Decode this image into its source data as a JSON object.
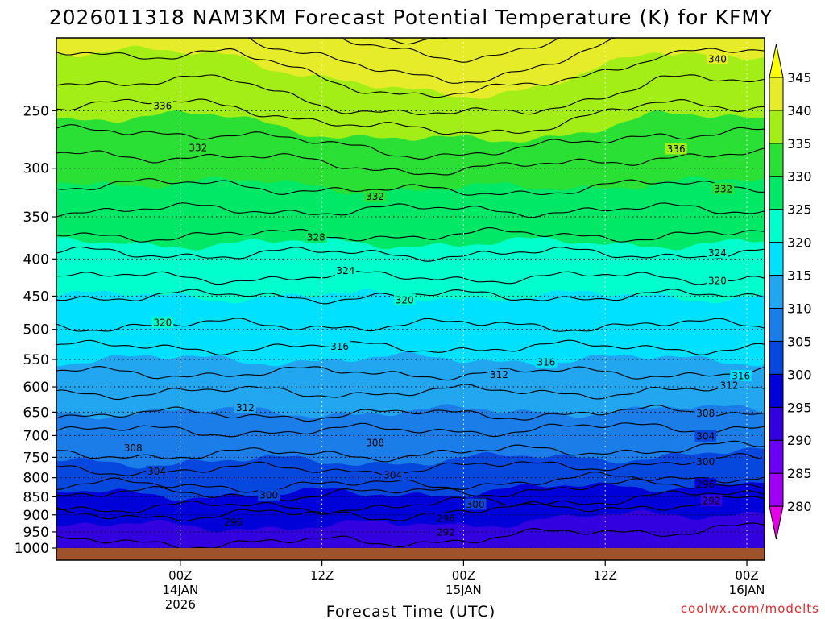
{
  "chart_data": {
    "type": "heatmap",
    "title": "2026011318 NAM3KM Forecast Potential Temperature (K) for KFMY",
    "xlabel": "Forecast Time (UTC)",
    "ylabel": "",
    "credit": "coolwx.com/modelts",
    "y_axis_log_pressure": true,
    "ylim": [
      1000,
      200
    ],
    "yticks": [
      1000,
      950,
      900,
      850,
      800,
      750,
      700,
      650,
      600,
      550,
      500,
      450,
      400,
      350,
      300,
      250
    ],
    "x_hours_range": [
      -4.5,
      55.5
    ],
    "x_ticks": [
      {
        "hour": 6,
        "lines": [
          "00Z",
          "14JAN",
          "2026"
        ]
      },
      {
        "hour": 18,
        "lines": [
          "12Z"
        ]
      },
      {
        "hour": 30,
        "lines": [
          "00Z",
          "15JAN"
        ]
      },
      {
        "hour": 42,
        "lines": [
          "12Z"
        ]
      },
      {
        "hour": 54,
        "lines": [
          "00Z",
          "16JAN"
        ]
      }
    ],
    "grid": true,
    "colorbar": {
      "levels": [
        280,
        285,
        290,
        295,
        300,
        305,
        310,
        315,
        320,
        325,
        330,
        335,
        340,
        345
      ],
      "colors": [
        "#e500e5",
        "#9d00f5",
        "#6a00f5",
        "#3300e0",
        "#0000d8",
        "#0648dd",
        "#1a7de8",
        "#22a6f0",
        "#00e0ff",
        "#00ffcc",
        "#00e865",
        "#2be035",
        "#a3ee17",
        "#e6ec2a",
        "#ffff00"
      ],
      "labels": [
        "280",
        "285",
        "290",
        "295",
        "300",
        "305",
        "310",
        "315",
        "320",
        "325",
        "330",
        "335",
        "340",
        "345"
      ]
    },
    "contour_interval": 4,
    "theta_profile_hpa_k": [
      [
        1000,
        293.5
      ],
      [
        950,
        294.5
      ],
      [
        900,
        296
      ],
      [
        850,
        299.5
      ],
      [
        800,
        303
      ],
      [
        750,
        305.5
      ],
      [
        700,
        307.5
      ],
      [
        650,
        310
      ],
      [
        600,
        312.5
      ],
      [
        550,
        315
      ],
      [
        500,
        317.5
      ],
      [
        450,
        320
      ],
      [
        400,
        323.5
      ],
      [
        350,
        327.5
      ],
      [
        300,
        331
      ],
      [
        250,
        335.5
      ],
      [
        200,
        341
      ]
    ],
    "contour_labels": [
      {
        "text": "340",
        "hour": 51.5,
        "hpa": 212
      },
      {
        "text": "336",
        "hour": 4.5,
        "hpa": 246
      },
      {
        "text": "336",
        "hour": 48,
        "hpa": 282
      },
      {
        "text": "332",
        "hour": 7.5,
        "hpa": 281
      },
      {
        "text": "332",
        "hour": 52,
        "hpa": 320
      },
      {
        "text": "332",
        "hour": 22.5,
        "hpa": 328
      },
      {
        "text": "328",
        "hour": 17.5,
        "hpa": 373
      },
      {
        "text": "324",
        "hour": 20,
        "hpa": 415
      },
      {
        "text": "324",
        "hour": 51.5,
        "hpa": 392
      },
      {
        "text": "320",
        "hour": 25,
        "hpa": 455
      },
      {
        "text": "320",
        "hour": 51.5,
        "hpa": 428
      },
      {
        "text": "320",
        "hour": 4.5,
        "hpa": 489
      },
      {
        "text": "316",
        "hour": 19.5,
        "hpa": 527
      },
      {
        "text": "316",
        "hour": 37,
        "hpa": 554
      },
      {
        "text": "316",
        "hour": 53.5,
        "hpa": 579
      },
      {
        "text": "312",
        "hour": 33,
        "hpa": 577
      },
      {
        "text": "312",
        "hour": 52.5,
        "hpa": 597
      },
      {
        "text": "312",
        "hour": 11.5,
        "hpa": 640
      },
      {
        "text": "308",
        "hour": 50.5,
        "hpa": 652
      },
      {
        "text": "308",
        "hour": 22.5,
        "hpa": 716
      },
      {
        "text": "308",
        "hour": 2,
        "hpa": 728
      },
      {
        "text": "304",
        "hour": 50.5,
        "hpa": 701
      },
      {
        "text": "304",
        "hour": 4,
        "hpa": 784
      },
      {
        "text": "304",
        "hour": 24,
        "hpa": 793
      },
      {
        "text": "300",
        "hour": 50.5,
        "hpa": 760
      },
      {
        "text": "300",
        "hour": 13.5,
        "hpa": 845
      },
      {
        "text": "300",
        "hour": 31,
        "hpa": 870
      },
      {
        "text": "296",
        "hour": 50.5,
        "hpa": 816
      },
      {
        "text": "296",
        "hour": 10.5,
        "hpa": 920
      },
      {
        "text": "296",
        "hour": 28.5,
        "hpa": 910
      },
      {
        "text": "292",
        "hour": 51,
        "hpa": 860
      },
      {
        "text": "292",
        "hour": 28.5,
        "hpa": 950
      }
    ]
  }
}
